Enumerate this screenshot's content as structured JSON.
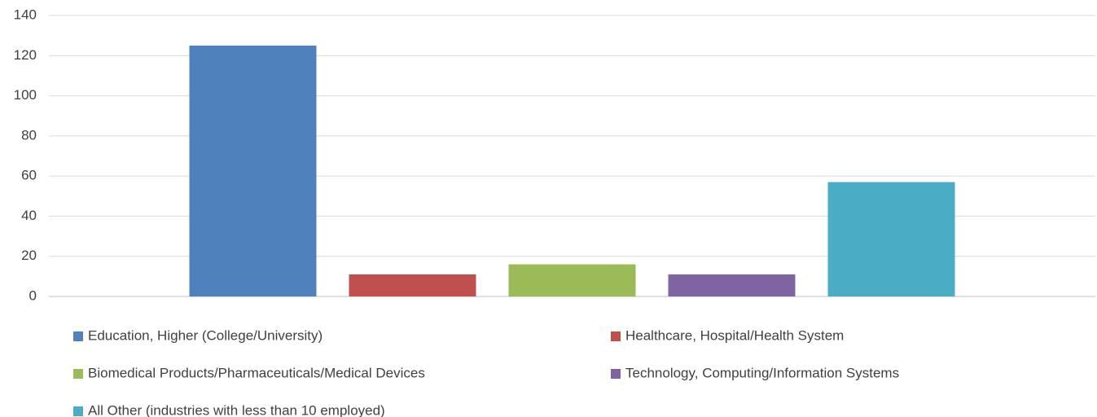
{
  "chart_data": {
    "type": "bar",
    "categories": [
      null
    ],
    "series": [
      {
        "name": "Education, Higher (College/University)",
        "color": "#4f81bd",
        "values": [
          125
        ]
      },
      {
        "name": "Healthcare, Hospital/Health System",
        "color": "#c0504d",
        "values": [
          11
        ]
      },
      {
        "name": "Biomedical Products/Pharmaceuticals/Medical Devices",
        "color": "#9bbb59",
        "values": [
          16
        ]
      },
      {
        "name": "Technology, Computing/Information Systems",
        "color": "#8064a2",
        "values": [
          11
        ]
      },
      {
        "name": "All Other (industries with less than 10 employed)",
        "color": "#4bacc6",
        "values": [
          57
        ]
      }
    ],
    "ylim": [
      0,
      140
    ],
    "yticks": [
      0,
      20,
      40,
      60,
      80,
      100,
      120,
      140
    ],
    "grid": true,
    "legend": "bottom"
  }
}
